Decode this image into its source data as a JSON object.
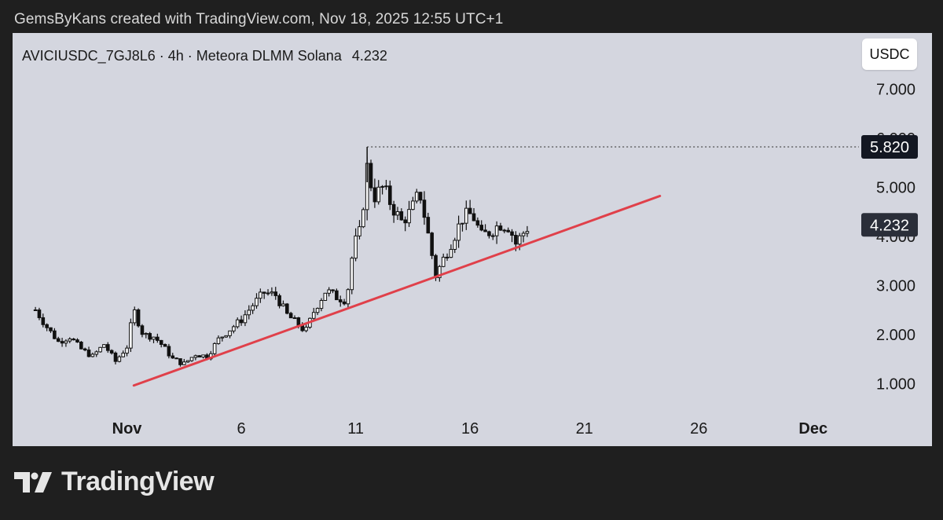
{
  "header": {
    "caption": "GemsByKans created with TradingView.com, Nov 18, 2025 12:55 UTC+1"
  },
  "chart": {
    "symbol_line": "AVICIUSDC_7GJ8L6 · 4h · Meteora DLMM Solana",
    "last_price": "4.232",
    "currency_button": "USDC"
  },
  "brand": {
    "name": "TradingView",
    "logo_icon": "tradingview-logo-icon"
  },
  "colors": {
    "page_bg": "#1f1f1f",
    "panel_bg": "#d4d6df",
    "candle": "#111111",
    "trendline": "#e0404a",
    "label_bg": "#131722"
  },
  "chart_data": {
    "type": "candlestick",
    "title": "AVICIUSDC_7GJ8L6 · 4h · Meteora DLMM Solana",
    "y_axis": {
      "ticks": [
        "7.000",
        "6.000",
        "5.000",
        "4.000",
        "3.000",
        "2.000",
        "1.000"
      ],
      "range": [
        0.3,
        7.5
      ]
    },
    "x_axis": {
      "ticks": [
        {
          "label": "Nov",
          "day": 1,
          "bold": true
        },
        {
          "label": "6",
          "day": 6,
          "bold": false
        },
        {
          "label": "11",
          "day": 11,
          "bold": false
        },
        {
          "label": "16",
          "day": 16,
          "bold": false
        },
        {
          "label": "21",
          "day": 21,
          "bold": false
        },
        {
          "label": "26",
          "day": 26,
          "bold": false
        },
        {
          "label": "Dec",
          "day": 31,
          "bold": true
        }
      ],
      "range": [
        -4,
        33
      ],
      "unit": "day of November 2025 (4h candles)"
    },
    "price_labels": [
      {
        "text": "5.820",
        "value": 5.82,
        "kind": "high"
      },
      {
        "text": "4.232",
        "value": 4.232,
        "kind": "last"
      }
    ],
    "high_marker": {
      "value": 5.82,
      "day": 11.5
    },
    "trendline": {
      "start": {
        "day": 1.3,
        "value": 0.96
      },
      "end": {
        "day": 24.3,
        "value": 4.82
      }
    },
    "series": [
      {
        "close_path": [
          [
            -3.0,
            2.5
          ],
          [
            -2.5,
            2.15
          ],
          [
            -2.0,
            1.85
          ],
          [
            -1.5,
            1.95
          ],
          [
            -1.0,
            1.7
          ],
          [
            -0.5,
            1.55
          ],
          [
            0.0,
            1.8
          ],
          [
            0.5,
            1.45
          ],
          [
            1.0,
            1.75
          ],
          [
            1.3,
            2.5
          ],
          [
            1.7,
            2.0
          ],
          [
            2.2,
            1.95
          ],
          [
            2.6,
            1.75
          ],
          [
            3.0,
            1.5
          ],
          [
            3.5,
            1.4
          ],
          [
            4.0,
            1.6
          ],
          [
            4.5,
            1.55
          ],
          [
            5.0,
            1.9
          ],
          [
            5.5,
            2.1
          ],
          [
            6.0,
            2.3
          ],
          [
            6.5,
            2.6
          ],
          [
            7.0,
            2.85
          ],
          [
            7.5,
            2.8
          ],
          [
            8.0,
            2.4
          ],
          [
            8.5,
            2.2
          ],
          [
            8.8,
            2.05
          ],
          [
            9.2,
            2.5
          ],
          [
            9.7,
            2.9
          ],
          [
            10.2,
            2.75
          ],
          [
            10.6,
            2.7
          ],
          [
            10.9,
            3.8
          ],
          [
            11.2,
            4.1
          ],
          [
            11.5,
            5.4
          ],
          [
            11.8,
            4.8
          ],
          [
            12.2,
            5.0
          ],
          [
            12.6,
            4.6
          ],
          [
            13.0,
            4.3
          ],
          [
            13.4,
            4.5
          ],
          [
            13.8,
            4.9
          ],
          [
            14.1,
            4.2
          ],
          [
            14.5,
            3.2
          ],
          [
            14.9,
            3.6
          ],
          [
            15.3,
            4.0
          ],
          [
            15.7,
            4.4
          ],
          [
            16.1,
            4.45
          ],
          [
            16.5,
            4.0
          ],
          [
            16.9,
            4.1
          ],
          [
            17.3,
            4.25
          ],
          [
            17.7,
            4.2
          ],
          [
            18.0,
            3.85
          ],
          [
            18.3,
            4.05
          ],
          [
            18.6,
            4.23
          ]
        ]
      }
    ]
  }
}
